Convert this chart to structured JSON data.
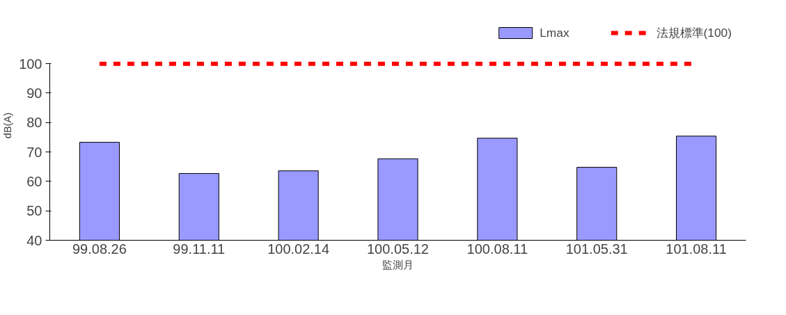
{
  "chart_data": {
    "type": "bar",
    "xlabel": "監測月",
    "ylabel": "dB(A)",
    "categories": [
      "99.08.26",
      "99.11.11",
      "100.02.14",
      "100.05.12",
      "100.08.11",
      "101.05.31",
      "101.08.11"
    ],
    "series": [
      {
        "name": "Lmax",
        "color": "#9999ff",
        "values": [
          73.3,
          62.7,
          63.6,
          67.7,
          74.7,
          64.8,
          75.4
        ]
      },
      {
        "name": "法規標準(100)",
        "type": "line",
        "color": "#ff0000",
        "line_style": "dashed",
        "values": [
          100,
          100,
          100,
          100,
          100,
          100,
          100
        ]
      }
    ],
    "ylim": [
      40,
      100
    ],
    "yticks": [
      40,
      50,
      60,
      70,
      80,
      90,
      100
    ],
    "grid": false,
    "legend": "top right"
  }
}
